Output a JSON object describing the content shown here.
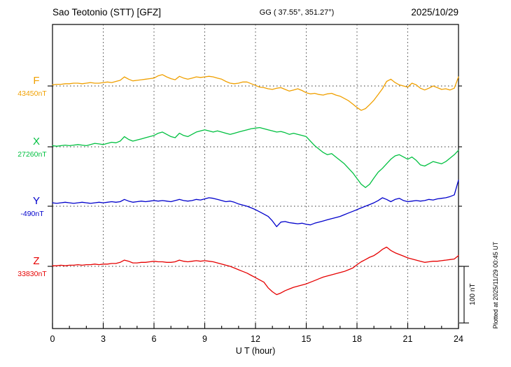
{
  "header": {
    "title": "Sao Teotonio (STT)  [GFZ]",
    "coords": "GG ( 37.55°, 351.27°)",
    "date": "2025/10/29"
  },
  "scale_bar_label": "100 nT",
  "plotted_at": "Plotted at 2025/11/29 00:45 UT",
  "chart_data": {
    "type": "line",
    "title": "Sao Teotonio (STT)  [GFZ]",
    "xlabel": "U T (hour)",
    "x_start": 0,
    "x_step": 0.25,
    "x_end": 24,
    "x_ticks": [
      0,
      3,
      6,
      9,
      12,
      15,
      18,
      21,
      24
    ],
    "x_minor_tick_step": 1,
    "scale_bar_nT": 100,
    "grid": "dotted vertical at 3h intervals, dotted horizontal at each trace baseline",
    "series": [
      {
        "name": "F",
        "baseline_label": "43450nT",
        "baseline_value": 43450,
        "color": "#f0a000",
        "deviations_nT": [
          2,
          3,
          3,
          4,
          4,
          5,
          5,
          4,
          5,
          6,
          5,
          5,
          6,
          7,
          6,
          8,
          10,
          16,
          12,
          9,
          10,
          11,
          12,
          13,
          14,
          18,
          20,
          16,
          13,
          11,
          17,
          14,
          12,
          14,
          16,
          15,
          16,
          17,
          16,
          14,
          12,
          8,
          5,
          4,
          5,
          7,
          7,
          4,
          1,
          -2,
          -3,
          -5,
          -6,
          -4,
          -3,
          -6,
          -9,
          -7,
          -5,
          -8,
          -12,
          -14,
          -13,
          -15,
          -16,
          -14,
          -13,
          -16,
          -18,
          -22,
          -26,
          -32,
          -38,
          -43,
          -40,
          -33,
          -25,
          -15,
          -5,
          8,
          12,
          6,
          2,
          0,
          -2,
          5,
          2,
          -4,
          -7,
          -4,
          0,
          -3,
          -6,
          -5,
          -7,
          -4,
          16
        ]
      },
      {
        "name": "X",
        "baseline_label": "27260nT",
        "baseline_value": 27260,
        "color": "#00c040",
        "deviations_nT": [
          2,
          1,
          2,
          3,
          2,
          3,
          4,
          3,
          2,
          4,
          6,
          5,
          4,
          6,
          8,
          7,
          10,
          18,
          13,
          10,
          12,
          14,
          16,
          18,
          20,
          24,
          26,
          22,
          18,
          16,
          24,
          20,
          18,
          22,
          26,
          28,
          30,
          28,
          26,
          28,
          26,
          24,
          22,
          24,
          26,
          28,
          30,
          32,
          33,
          34,
          32,
          30,
          28,
          26,
          27,
          25,
          22,
          24,
          22,
          20,
          18,
          10,
          2,
          -4,
          -10,
          -14,
          -12,
          -18,
          -24,
          -30,
          -38,
          -46,
          -56,
          -66,
          -72,
          -66,
          -55,
          -45,
          -38,
          -30,
          -22,
          -16,
          -14,
          -18,
          -22,
          -18,
          -24,
          -32,
          -34,
          -30,
          -26,
          -28,
          -30,
          -26,
          -20,
          -14,
          -6
        ]
      },
      {
        "name": "Y",
        "baseline_label": "-490nT",
        "baseline_value": -490,
        "color": "#0000cc",
        "deviations_nT": [
          6,
          5,
          6,
          7,
          6,
          5,
          6,
          7,
          6,
          5,
          6,
          7,
          6,
          7,
          8,
          7,
          8,
          12,
          9,
          7,
          8,
          9,
          8,
          9,
          10,
          9,
          10,
          9,
          8,
          10,
          12,
          10,
          9,
          10,
          12,
          11,
          13,
          15,
          14,
          12,
          10,
          8,
          9,
          7,
          4,
          2,
          0,
          -3,
          -6,
          -10,
          -14,
          -18,
          -26,
          -36,
          -28,
          -27,
          -29,
          -30,
          -31,
          -30,
          -32,
          -33,
          -30,
          -28,
          -26,
          -24,
          -22,
          -20,
          -18,
          -15,
          -12,
          -9,
          -6,
          -3,
          0,
          3,
          6,
          10,
          15,
          12,
          8,
          12,
          14,
          10,
          8,
          9,
          10,
          9,
          10,
          12,
          11,
          13,
          14,
          15,
          17,
          20,
          46
        ]
      },
      {
        "name": "Z",
        "baseline_label": "33830nT",
        "baseline_value": 33830,
        "color": "#e60000",
        "deviations_nT": [
          1,
          1,
          2,
          1,
          2,
          2,
          3,
          2,
          3,
          3,
          4,
          3,
          4,
          4,
          5,
          5,
          7,
          11,
          9,
          6,
          6,
          7,
          7,
          8,
          9,
          8,
          8,
          7,
          7,
          8,
          11,
          9,
          8,
          9,
          10,
          9,
          10,
          9,
          8,
          6,
          4,
          2,
          0,
          -3,
          -6,
          -9,
          -12,
          -16,
          -20,
          -24,
          -28,
          -38,
          -45,
          -50,
          -47,
          -43,
          -40,
          -37,
          -35,
          -33,
          -31,
          -28,
          -25,
          -22,
          -19,
          -17,
          -15,
          -13,
          -11,
          -9,
          -6,
          -3,
          3,
          8,
          12,
          16,
          19,
          24,
          30,
          34,
          28,
          24,
          21,
          18,
          15,
          13,
          11,
          9,
          7,
          8,
          9,
          9,
          10,
          11,
          12,
          13,
          19
        ]
      }
    ]
  }
}
